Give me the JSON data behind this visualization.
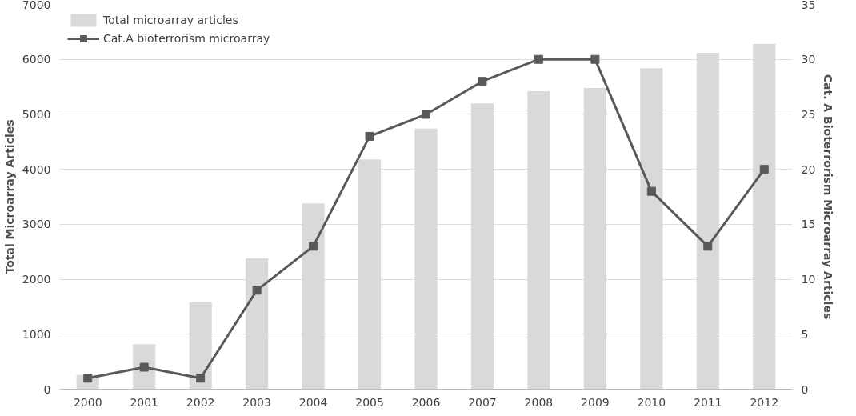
{
  "chart_data": {
    "type": "bar",
    "ylabel": "Total Microarray Articles",
    "y2label": "Cat. A Bioterrorism Microarray Articles",
    "categories": [
      "2000",
      "2001",
      "2002",
      "2003",
      "2004",
      "2005",
      "2006",
      "2007",
      "2008",
      "2009",
      "2010",
      "2011",
      "2012"
    ],
    "series": [
      {
        "name": "Total microarray articles",
        "color": "#d9d9d9",
        "values": [
          260,
          820,
          1580,
          2380,
          3380,
          4180,
          4740,
          5200,
          5420,
          5480,
          5840,
          6120,
          6280
        ]
      },
      {
        "name": "Cat.A bioterrorism microarray",
        "type": "line",
        "axis": "y2",
        "color": "#595959",
        "marker": "square",
        "values": [
          1,
          2,
          1,
          9,
          13,
          23,
          25,
          28,
          30,
          30,
          18,
          13,
          20
        ]
      }
    ],
    "ylim": [
      0,
      7000
    ],
    "yticks": [
      0,
      1000,
      2000,
      3000,
      4000,
      5000,
      6000,
      7000
    ],
    "y2lim": [
      0,
      35
    ],
    "y2ticks": [
      0,
      5,
      10,
      15,
      20,
      25,
      30,
      35
    ],
    "grid": "y",
    "legend": "top left"
  }
}
